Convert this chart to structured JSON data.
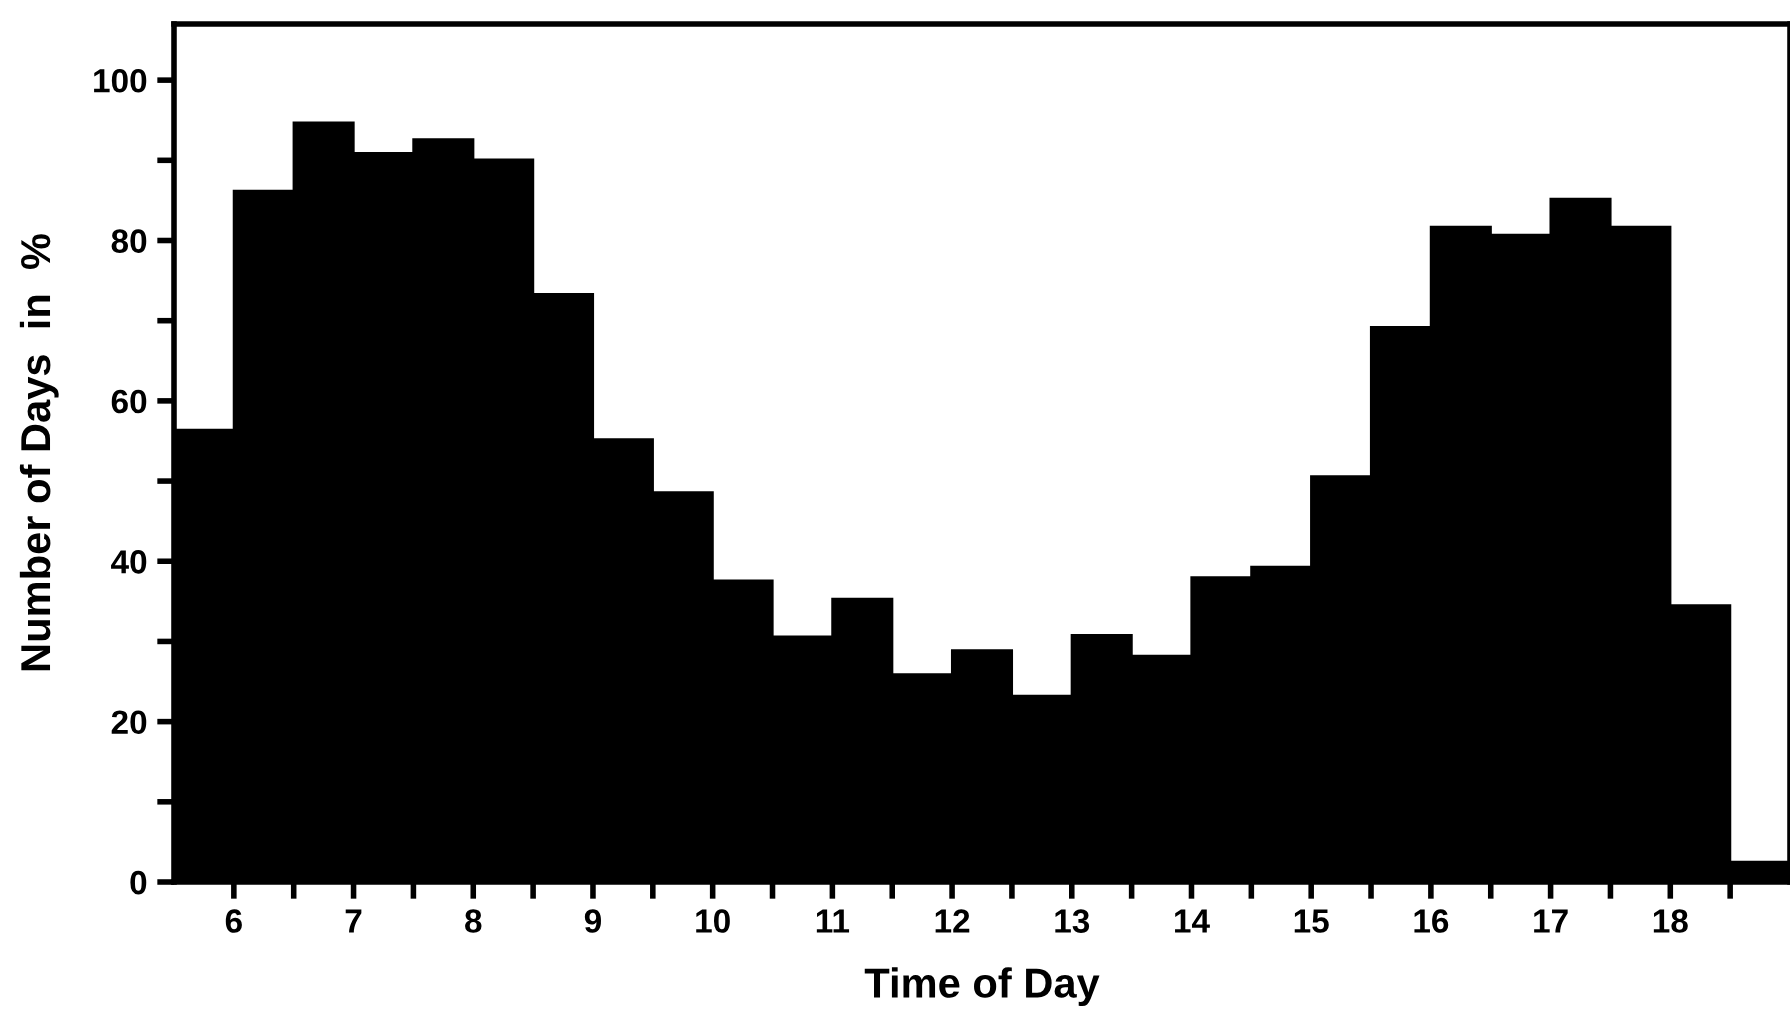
{
  "chart_data": {
    "type": "histogram",
    "xlabel": "Time of Day",
    "ylabel": "Number of Days  in  %",
    "bins": [
      5.5,
      6,
      6.5,
      7,
      7.5,
      8,
      8.5,
      9,
      9.5,
      10,
      10.5,
      11,
      11.5,
      12,
      12.5,
      13,
      13.5,
      14,
      14.5,
      15,
      15.5,
      16,
      16.5,
      17,
      17.5,
      18,
      18.5,
      19
    ],
    "values": [
      56.4,
      86.2,
      94.7,
      90.9,
      92.6,
      90.1,
      73.3,
      55.2,
      48.6,
      37.6,
      30.6,
      35.3,
      25.9,
      28.9,
      23.2,
      30.8,
      28.2,
      38.0,
      39.3,
      50.6,
      69.2,
      81.7,
      80.7,
      85.2,
      81.7,
      34.5,
      2.5
    ],
    "color": "#000000",
    "xlim": [
      5.5,
      19
    ],
    "xticks": [
      6,
      {
        "value": 6.5,
        "label": null
      },
      7,
      {
        "value": 7.5,
        "label": null
      },
      8,
      {
        "value": 8.5,
        "label": null
      },
      9,
      {
        "value": 9.5,
        "label": null
      },
      10,
      {
        "value": 10.5,
        "label": null
      },
      11,
      {
        "value": 11.5,
        "label": null
      },
      12,
      {
        "value": 12.5,
        "label": null
      },
      13,
      {
        "value": 13.5,
        "label": null
      },
      14,
      {
        "value": 14.5,
        "label": null
      },
      15,
      {
        "value": 15.5,
        "label": null
      },
      16,
      {
        "value": 16.5,
        "label": null
      },
      17,
      {
        "value": 17.5,
        "label": null
      },
      18,
      {
        "value": 18.5,
        "label": null
      }
    ],
    "ylim": [
      0,
      107
    ],
    "yticks": [
      0,
      {
        "value": 10,
        "label": null
      },
      20,
      {
        "value": 30,
        "label": null
      },
      40,
      {
        "value": 50,
        "label": null
      },
      60,
      {
        "value": 70,
        "label": null
      },
      80,
      {
        "value": 90,
        "label": null
      },
      100
    ],
    "grid": false
  }
}
